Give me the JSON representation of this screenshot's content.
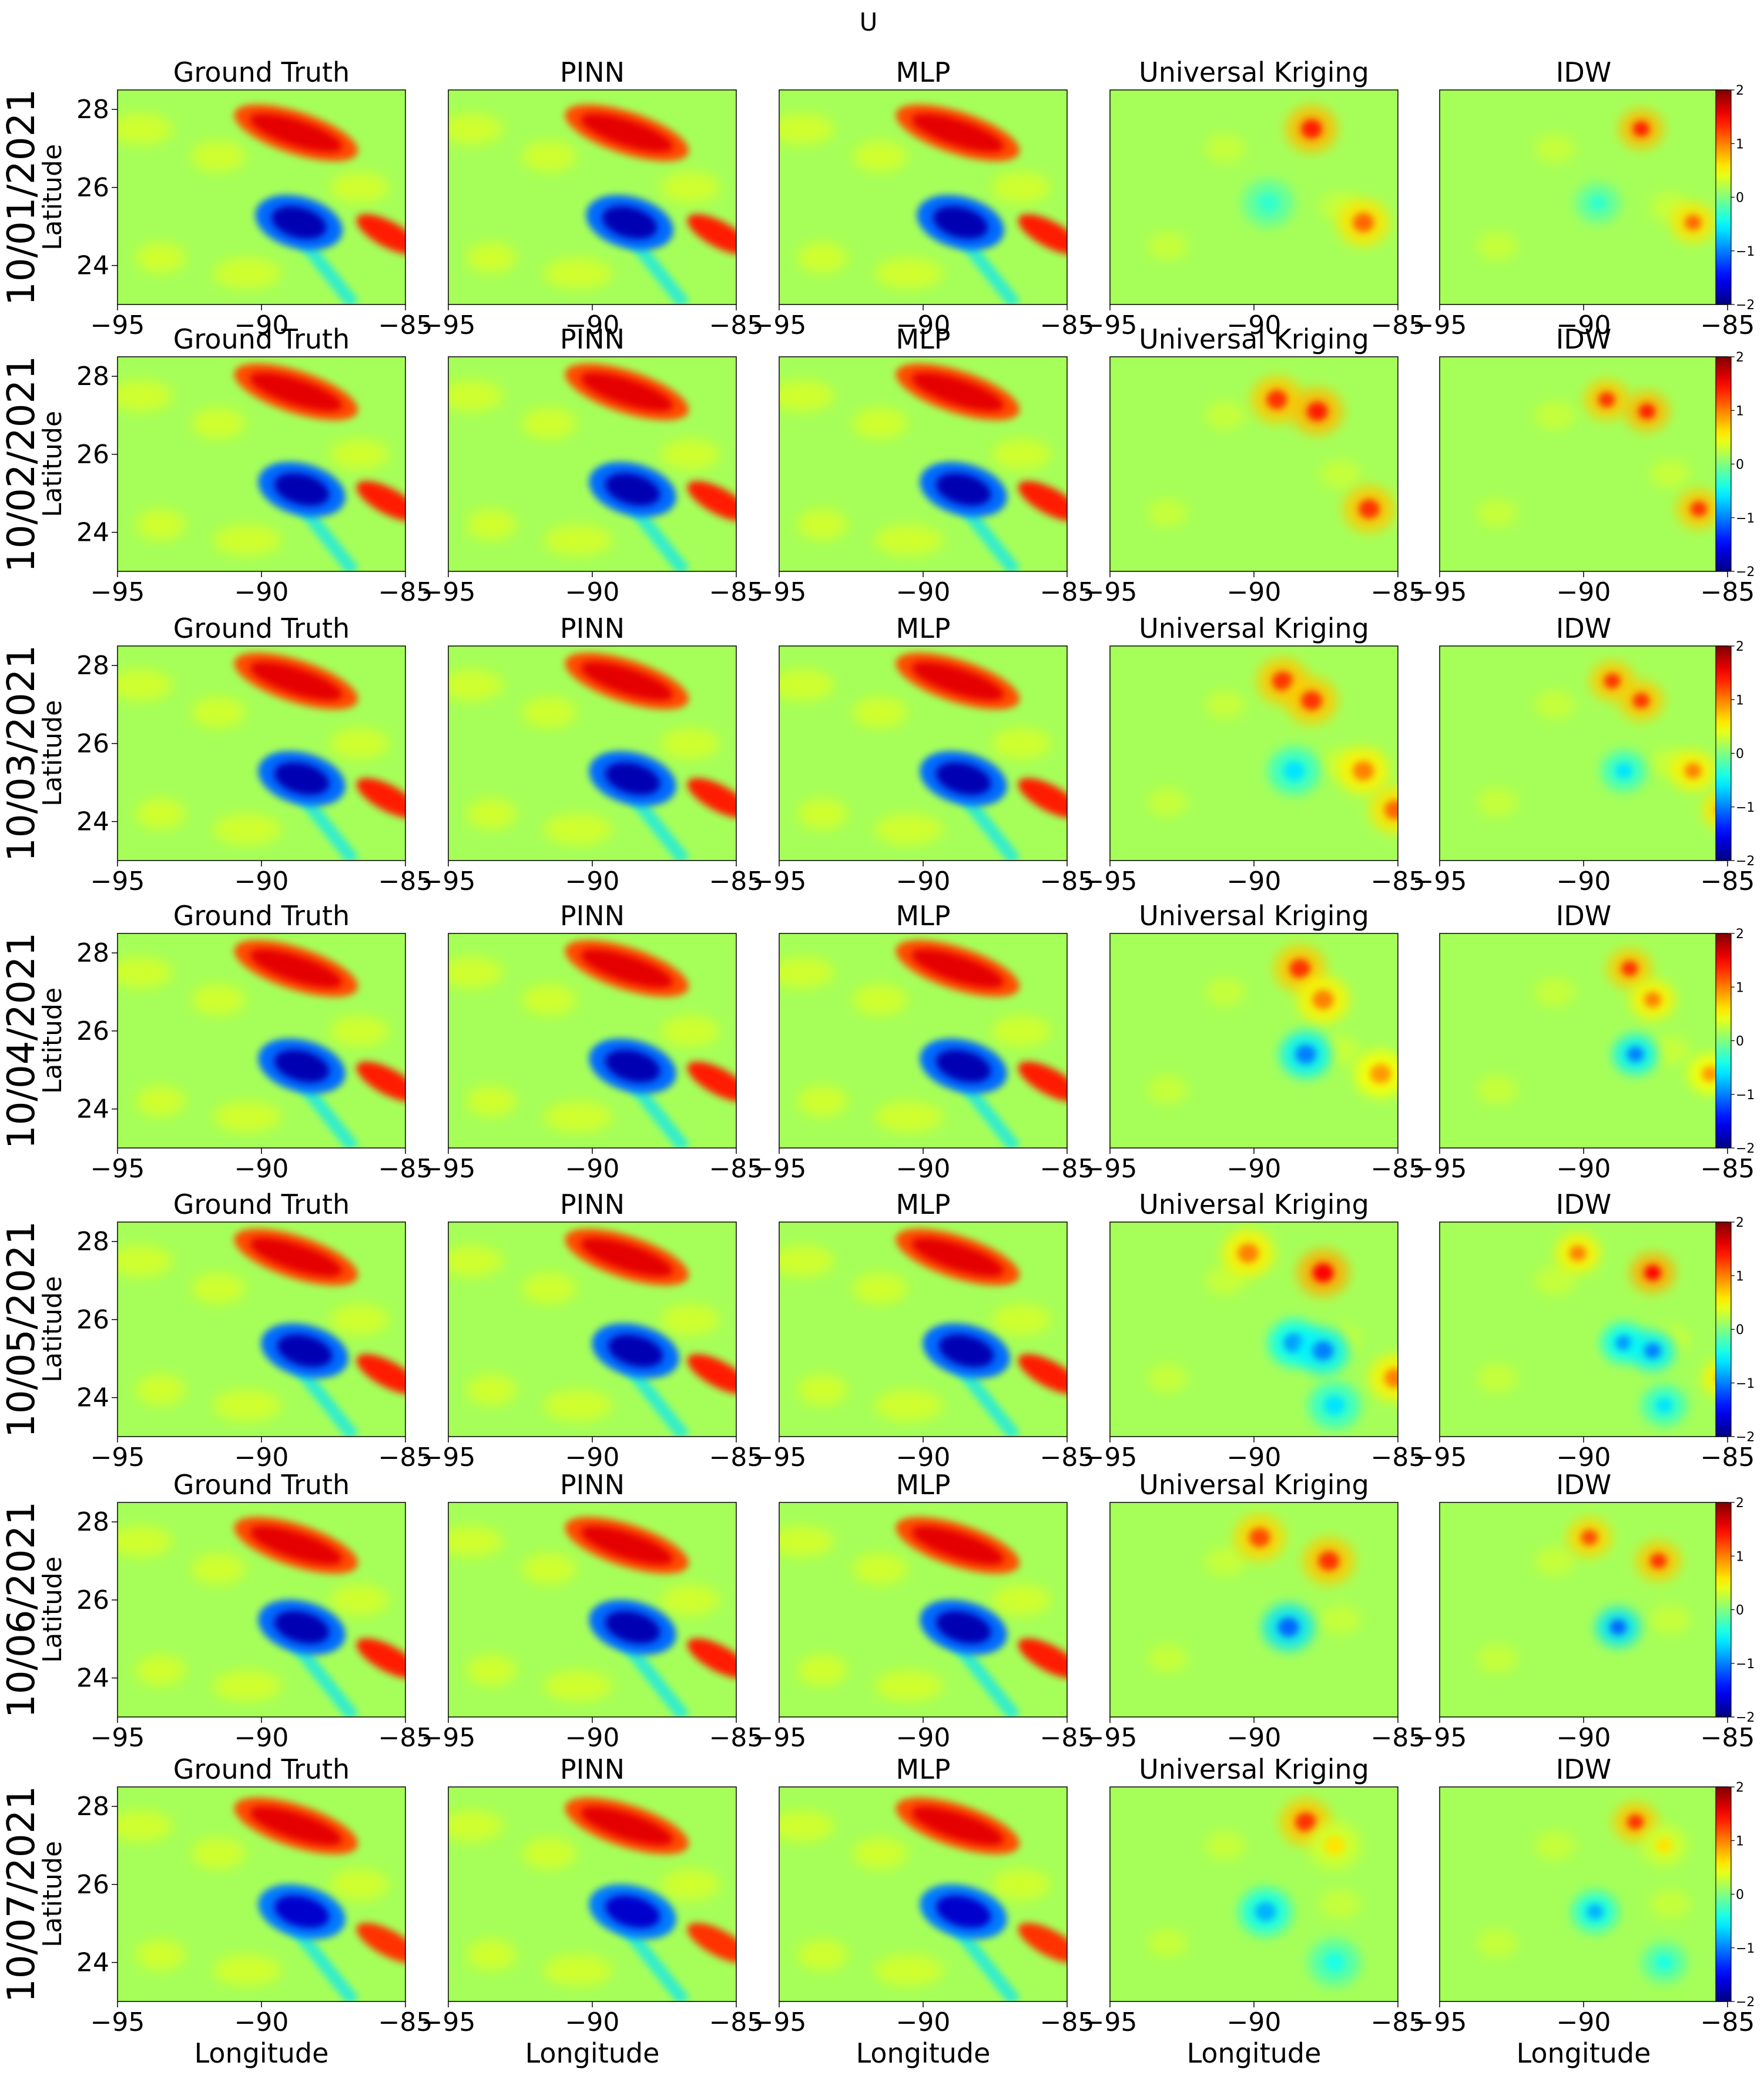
{
  "figure": {
    "suptitle": "U",
    "methods": [
      "Ground Truth",
      "PINN",
      "MLP",
      "Universal Kriging",
      "IDW"
    ],
    "dates": [
      "10/01/2021",
      "10/02/2021",
      "10/03/2021",
      "10/04/2021",
      "10/05/2021",
      "10/06/2021",
      "10/07/2021"
    ],
    "ylabel": "Latitude",
    "xlabel": "Longitude",
    "colormap": "jet"
  },
  "chart_data": {
    "type": "heatmap",
    "title": "U",
    "xlabel": "Longitude",
    "ylabel": "Latitude",
    "xlim": [
      -95,
      -85
    ],
    "ylim": [
      23,
      28.5
    ],
    "x_ticks": [
      -95,
      -90,
      -85
    ],
    "x_tick_labels": [
      "−95",
      "−90",
      "−85"
    ],
    "y_ticks": [
      24,
      26,
      28
    ],
    "y_tick_labels": [
      "24",
      "26",
      "28"
    ],
    "colorbar": {
      "vmin": -2,
      "vmax": 2,
      "ticks": [
        -2,
        -1,
        0,
        1,
        2
      ],
      "tick_labels": [
        "−2",
        "−1",
        "0",
        "1",
        "2"
      ]
    },
    "grid": false,
    "rows": [
      {
        "date": "10/01/2021",
        "obs": [
          {
            "lon": -88,
            "lat": 27.5,
            "v": 1.4
          },
          {
            "lon": -86.2,
            "lat": 25.1,
            "v": 1.1
          },
          {
            "lon": -89.5,
            "lat": 25.6,
            "v": -0.3
          }
        ],
        "ground_truth": {
          "warm": {
            "lon": -88.8,
            "lat": 27.4,
            "v": 1.6
          },
          "cold": {
            "lon": -88.7,
            "lat": 25.1,
            "v": -1.8
          },
          "east": {
            "lon": -85.6,
            "lat": 24.8,
            "v": 1.4
          }
        }
      },
      {
        "date": "10/02/2021",
        "obs": [
          {
            "lon": -89.2,
            "lat": 27.4,
            "v": 1.3
          },
          {
            "lon": -87.8,
            "lat": 27.1,
            "v": 1.4
          },
          {
            "lon": -86,
            "lat": 24.6,
            "v": 1.3
          }
        ],
        "ground_truth": {
          "warm": {
            "lon": -88.8,
            "lat": 27.6,
            "v": 1.6
          },
          "cold": {
            "lon": -88.6,
            "lat": 25.1,
            "v": -1.8
          },
          "east": {
            "lon": -85.6,
            "lat": 24.8,
            "v": 1.4
          }
        }
      },
      {
        "date": "10/03/2021",
        "obs": [
          {
            "lon": -89,
            "lat": 27.6,
            "v": 1.3
          },
          {
            "lon": -88,
            "lat": 27.1,
            "v": 1.3
          },
          {
            "lon": -86.2,
            "lat": 25.3,
            "v": 1.0
          },
          {
            "lon": -85.1,
            "lat": 24.3,
            "v": 1.1
          },
          {
            "lon": -88.6,
            "lat": 25.3,
            "v": -0.6
          }
        ],
        "ground_truth": {
          "warm": {
            "lon": -88.8,
            "lat": 27.6,
            "v": 1.6
          },
          "cold": {
            "lon": -88.6,
            "lat": 25.1,
            "v": -1.8
          },
          "east": {
            "lon": -85.6,
            "lat": 24.6,
            "v": 1.4
          }
        }
      },
      {
        "date": "10/04/2021",
        "obs": [
          {
            "lon": -88.4,
            "lat": 27.6,
            "v": 1.3
          },
          {
            "lon": -87.6,
            "lat": 26.8,
            "v": 1.0
          },
          {
            "lon": -88.2,
            "lat": 25.4,
            "v": -1.0
          },
          {
            "lon": -85.6,
            "lat": 24.9,
            "v": 0.9
          }
        ],
        "ground_truth": {
          "warm": {
            "lon": -88.8,
            "lat": 27.6,
            "v": 1.6
          },
          "cold": {
            "lon": -88.6,
            "lat": 25.1,
            "v": -1.8
          },
          "east": {
            "lon": -85.6,
            "lat": 24.7,
            "v": 1.4
          }
        }
      },
      {
        "date": "10/05/2021",
        "obs": [
          {
            "lon": -90.2,
            "lat": 27.7,
            "v": 1.0
          },
          {
            "lon": -87.6,
            "lat": 27.2,
            "v": 1.5
          },
          {
            "lon": -88.6,
            "lat": 25.4,
            "v": -0.9
          },
          {
            "lon": -87.6,
            "lat": 25.2,
            "v": -1.0
          },
          {
            "lon": -87.2,
            "lat": 23.8,
            "v": -0.6
          },
          {
            "lon": -85.1,
            "lat": 24.5,
            "v": 1.0
          }
        ],
        "ground_truth": {
          "warm": {
            "lon": -88.8,
            "lat": 27.6,
            "v": 1.6
          },
          "cold": {
            "lon": -88.5,
            "lat": 25.2,
            "v": -1.8
          },
          "east": {
            "lon": -85.6,
            "lat": 24.6,
            "v": 1.4
          }
        }
      },
      {
        "date": "10/06/2021",
        "obs": [
          {
            "lon": -89.8,
            "lat": 27.6,
            "v": 1.2
          },
          {
            "lon": -87.4,
            "lat": 27.0,
            "v": 1.3
          },
          {
            "lon": -88.8,
            "lat": 25.3,
            "v": -1.1
          }
        ],
        "ground_truth": {
          "warm": {
            "lon": -88.8,
            "lat": 27.4,
            "v": 1.6
          },
          "cold": {
            "lon": -88.6,
            "lat": 25.3,
            "v": -1.8
          },
          "east": {
            "lon": -85.6,
            "lat": 24.5,
            "v": 1.4
          }
        }
      },
      {
        "date": "10/07/2021",
        "obs": [
          {
            "lon": -88.2,
            "lat": 27.6,
            "v": 1.3
          },
          {
            "lon": -89.6,
            "lat": 25.3,
            "v": -0.8
          },
          {
            "lon": -87.2,
            "lat": 27.0,
            "v": 0.6
          },
          {
            "lon": -87.2,
            "lat": 24.0,
            "v": -0.4
          }
        ],
        "ground_truth": {
          "warm": {
            "lon": -88.8,
            "lat": 27.5,
            "v": 1.6
          },
          "cold": {
            "lon": -88.6,
            "lat": 25.3,
            "v": -1.7
          },
          "east": {
            "lon": -85.6,
            "lat": 24.5,
            "v": 1.3
          }
        }
      }
    ]
  }
}
